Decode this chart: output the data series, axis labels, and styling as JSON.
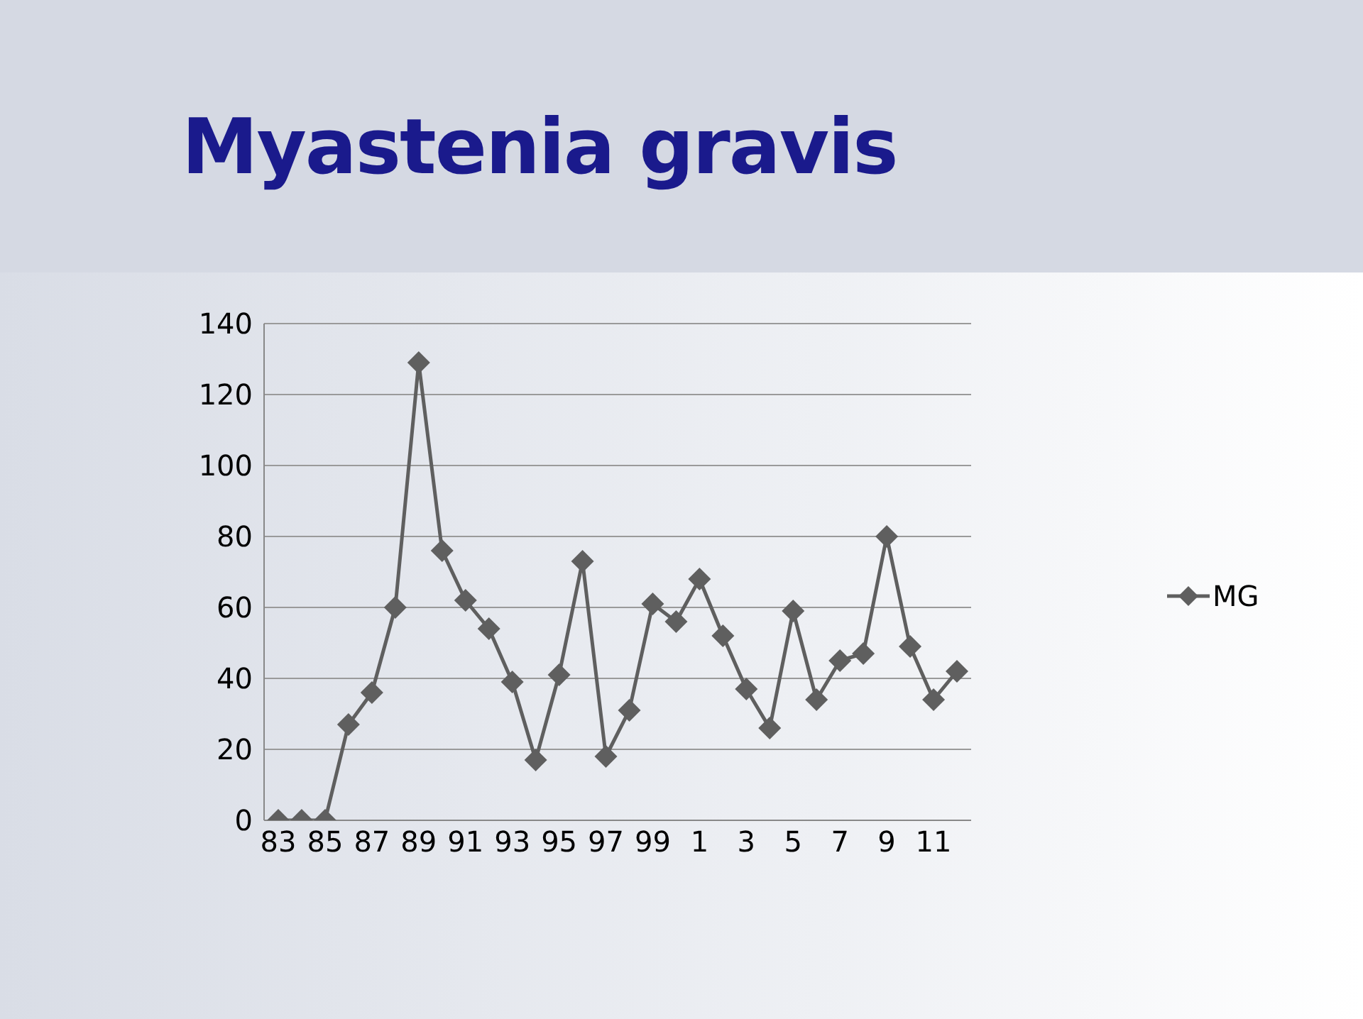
{
  "chart_data": {
    "type": "line",
    "title": "Myastenia gravis",
    "categories": [
      "83",
      null,
      "85",
      null,
      "87",
      null,
      "89",
      null,
      "91",
      null,
      "93",
      null,
      "95",
      null,
      "97",
      null,
      "99",
      null,
      "1",
      null,
      "3",
      null,
      "5",
      null,
      "7",
      null,
      "9",
      null,
      "11",
      null
    ],
    "series": [
      {
        "name": "MG",
        "color": "#5f5f5f",
        "values": [
          0,
          0,
          0,
          27,
          36,
          60,
          129,
          76,
          62,
          54,
          39,
          17,
          41,
          73,
          18,
          31,
          61,
          56,
          68,
          52,
          37,
          26,
          59,
          34,
          45,
          47,
          80,
          49,
          34,
          42
        ]
      }
    ],
    "ylim": [
      0,
      140
    ],
    "yticks": [
      0,
      20,
      40,
      60,
      80,
      100,
      120,
      140
    ],
    "grid": "y",
    "legend": "right",
    "marker": "diamond"
  }
}
